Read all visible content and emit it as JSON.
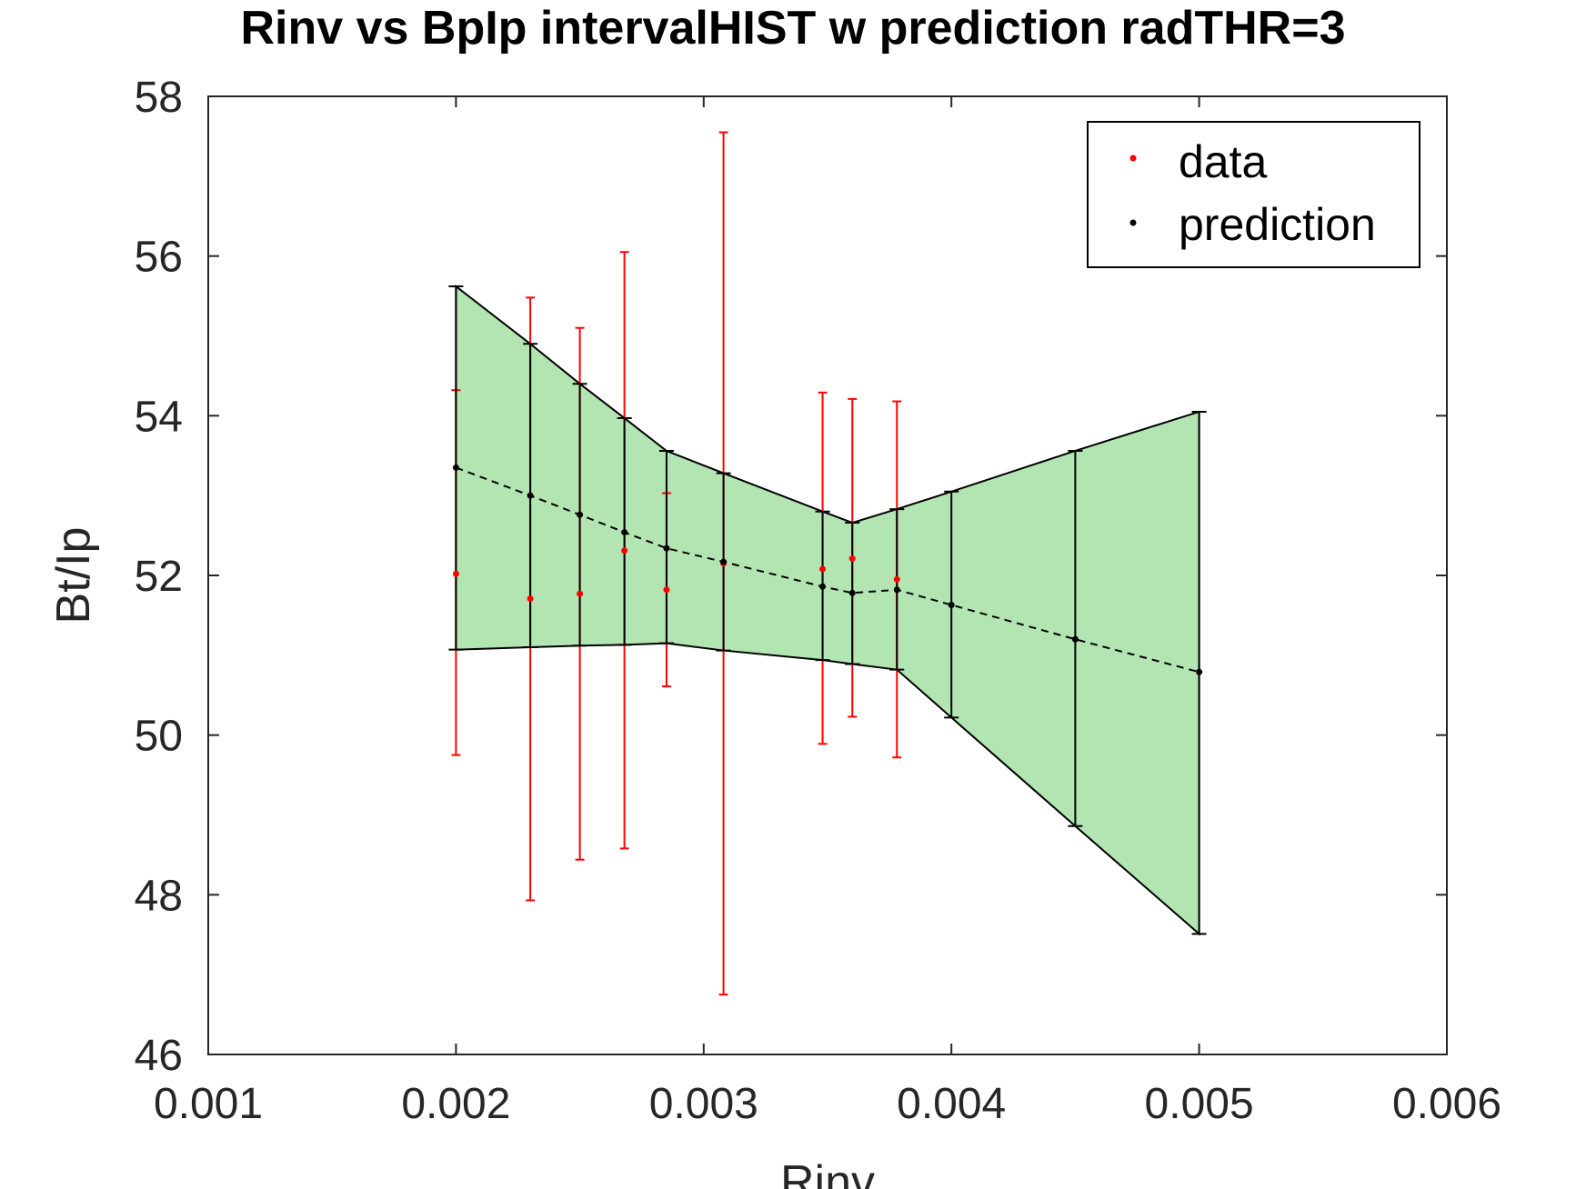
{
  "chart_data": {
    "type": "scatter",
    "title": "Rinv vs BpIp intervalHIST w prediction radTHR=3",
    "xlabel": "Rinv",
    "ylabel": "Bt/Ip",
    "xlim": [
      0.001,
      0.006
    ],
    "ylim": [
      46,
      58
    ],
    "xticks": [
      "0.001",
      "0.002",
      "0.003",
      "0.004",
      "0.005",
      "0.006"
    ],
    "yticks": [
      "46",
      "48",
      "50",
      "52",
      "54",
      "56",
      "58"
    ],
    "grid": false,
    "legend_position": "top-right",
    "legend": [
      "data",
      "prediction"
    ],
    "colors": {
      "data": "#ff0000",
      "prediction": "#000000",
      "band_fill": "#b3e5b3",
      "axes": "#262626"
    },
    "series": [
      {
        "name": "data",
        "x": [
          0.002,
          0.0023,
          0.0025,
          0.00268,
          0.00285,
          0.00308,
          0.00348,
          0.0036,
          0.00378
        ],
        "y": [
          52.02,
          51.71,
          51.77,
          52.31,
          51.82,
          52.15,
          52.08,
          52.21,
          51.95
        ],
        "yerr_low": [
          49.75,
          47.93,
          48.44,
          48.58,
          50.61,
          46.75,
          49.89,
          50.23,
          49.72
        ],
        "yerr_high": [
          54.32,
          55.48,
          55.1,
          56.05,
          53.03,
          57.55,
          54.29,
          54.21,
          54.18
        ]
      },
      {
        "name": "prediction",
        "x": [
          0.002,
          0.0023,
          0.0025,
          0.00268,
          0.00285,
          0.00308,
          0.00348,
          0.0036,
          0.00378,
          0.004,
          0.0045,
          0.005
        ],
        "y": [
          53.35,
          53.0,
          52.76,
          52.54,
          52.34,
          52.17,
          51.86,
          51.78,
          51.82,
          51.63,
          51.2,
          50.79
        ],
        "lower": [
          51.07,
          51.1,
          51.12,
          51.13,
          51.15,
          51.06,
          50.94,
          50.89,
          50.82,
          50.22,
          48.86,
          47.51
        ],
        "upper": [
          55.62,
          54.9,
          54.4,
          53.97,
          53.56,
          53.28,
          52.8,
          52.66,
          52.83,
          53.05,
          53.56,
          54.05
        ]
      }
    ]
  }
}
